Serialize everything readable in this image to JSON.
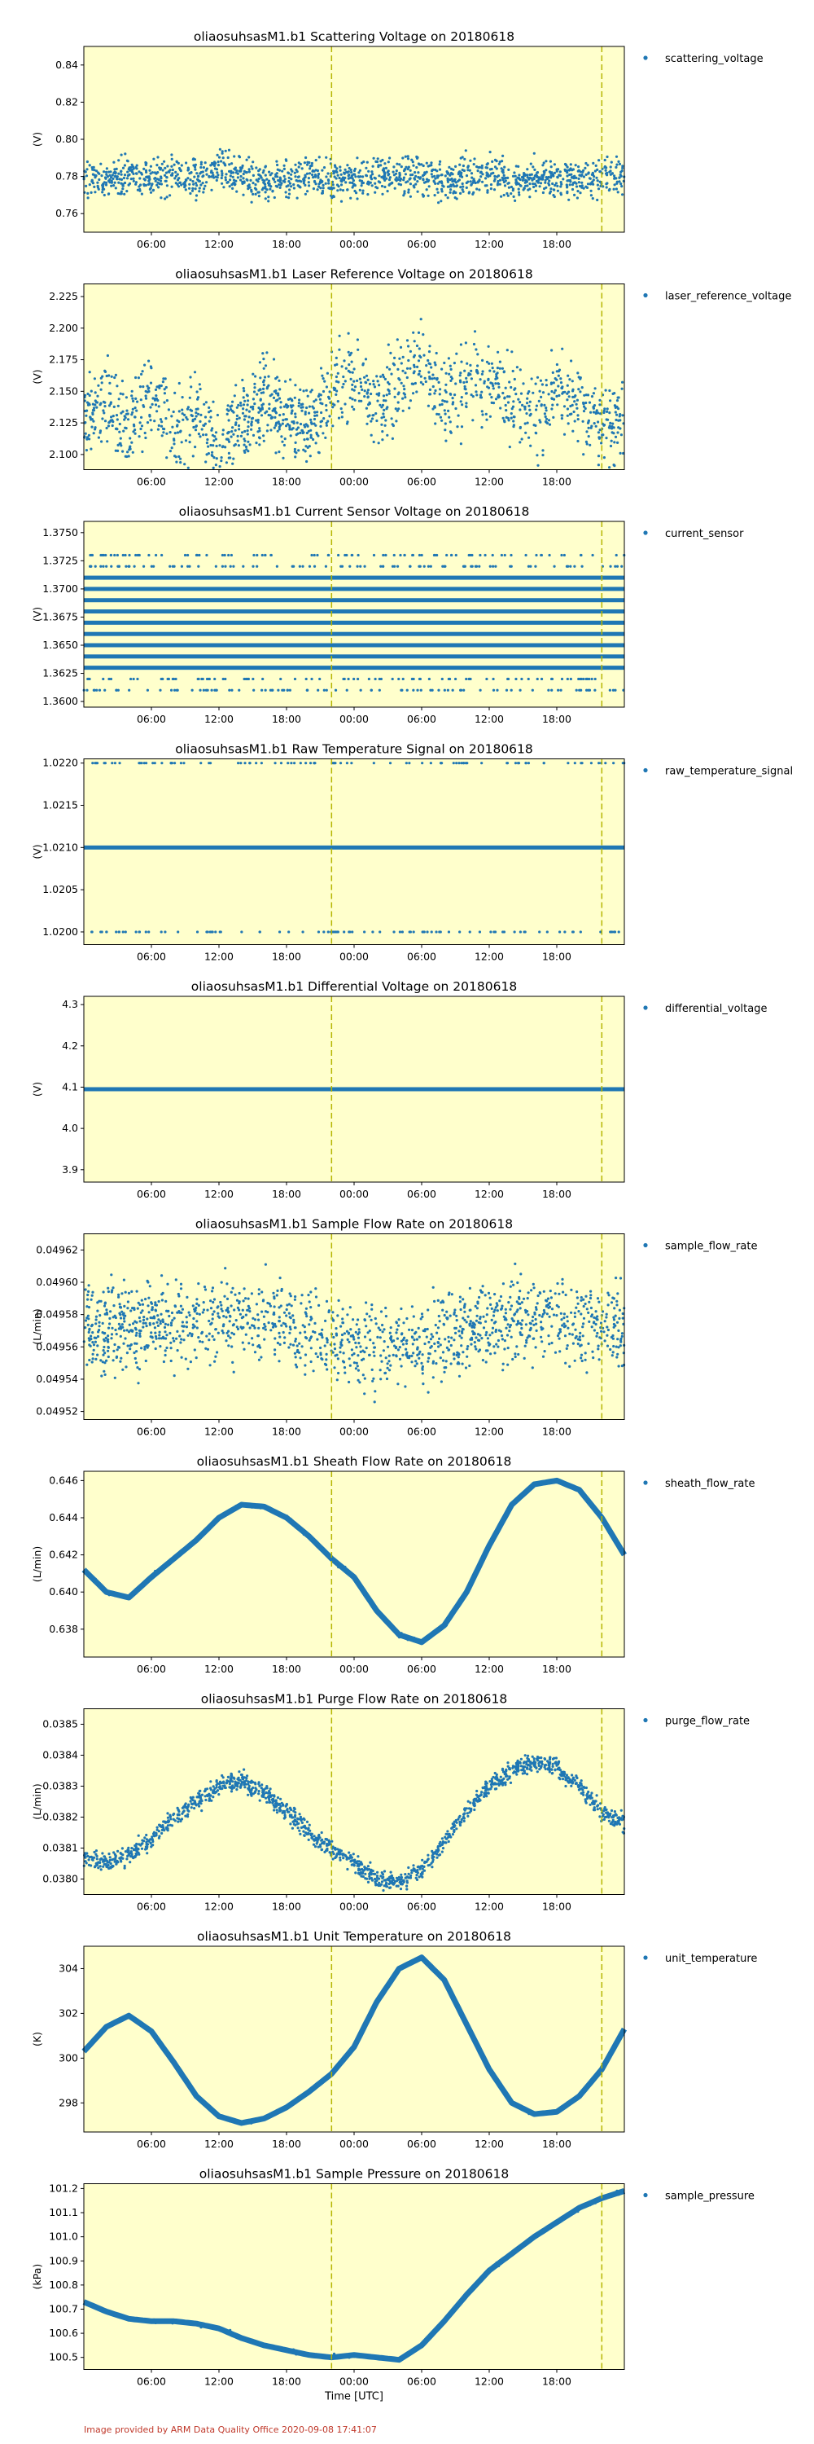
{
  "xaxis": {
    "ticks": [
      "06:00",
      "12:00",
      "18:00",
      "00:00",
      "06:00",
      "12:00",
      "18:00"
    ],
    "tick_hours": [
      6,
      12,
      18,
      24,
      30,
      36,
      42
    ],
    "range_hours": [
      0,
      48
    ],
    "xlabel": "Time [UTC]"
  },
  "vlines_hours": [
    22,
    46
  ],
  "colors": {
    "plot_bg": "#ffffcc",
    "series": "#1f77b4",
    "vline": "#b5b500",
    "footer": "#c0392b"
  },
  "footer": "Image provided by ARM Data Quality Office 2020-09-08 17:41:07",
  "chart_data": [
    {
      "type": "scatter",
      "title": "oliaosuhsasM1.b1 Scattering Voltage on 20180618",
      "ylabel": "(V)",
      "legend": "scattering_voltage",
      "ylim": [
        0.75,
        0.85
      ],
      "yticks": [
        0.76,
        0.78,
        0.8,
        0.82,
        0.84
      ],
      "ytick_labels": [
        "0.76",
        "0.78",
        "0.80",
        "0.82",
        "0.84"
      ],
      "series": [
        {
          "name": "scattering_voltage",
          "x": [
            0,
            2,
            4,
            6,
            8,
            10,
            12,
            14,
            16,
            18,
            20,
            22,
            24,
            26,
            28,
            30,
            32,
            34,
            36,
            38,
            40,
            42,
            44,
            46,
            48
          ],
          "y": [
            0.78,
            0.778,
            0.781,
            0.779,
            0.782,
            0.778,
            0.785,
            0.78,
            0.776,
            0.779,
            0.781,
            0.778,
            0.777,
            0.782,
            0.779,
            0.781,
            0.777,
            0.78,
            0.783,
            0.776,
            0.779,
            0.78,
            0.778,
            0.781,
            0.779
          ]
        }
      ]
    },
    {
      "type": "scatter",
      "title": "oliaosuhsasM1.b1 Laser Reference Voltage on 20180618",
      "ylabel": "(V)",
      "legend": "laser_reference_voltage",
      "ylim": [
        2.088,
        2.235
      ],
      "yticks": [
        2.1,
        2.125,
        2.15,
        2.175,
        2.2,
        2.225
      ],
      "ytick_labels": [
        "2.100",
        "2.125",
        "2.150",
        "2.175",
        "2.200",
        "2.225"
      ],
      "series": [
        {
          "name": "laser_reference_voltage",
          "x": [
            0,
            2,
            4,
            6,
            8,
            10,
            12,
            14,
            16,
            18,
            20,
            22,
            24,
            26,
            28,
            30,
            32,
            34,
            36,
            38,
            40,
            42,
            44,
            46,
            48
          ],
          "y": [
            2.13,
            2.14,
            2.12,
            2.15,
            2.11,
            2.135,
            2.105,
            2.125,
            2.145,
            2.13,
            2.12,
            2.15,
            2.16,
            2.14,
            2.155,
            2.17,
            2.145,
            2.15,
            2.16,
            2.14,
            2.13,
            2.15,
            2.14,
            2.12,
            2.135
          ]
        }
      ]
    },
    {
      "type": "scatter",
      "title": "oliaosuhsasM1.b1 Current Sensor Voltage on 20180618",
      "ylabel": "(V)",
      "legend": "current_sensor",
      "ylim": [
        1.3595,
        1.376
      ],
      "yticks": [
        1.36,
        1.3625,
        1.365,
        1.3675,
        1.37,
        1.3725,
        1.375
      ],
      "ytick_labels": [
        "1.3600",
        "1.3625",
        "1.3650",
        "1.3675",
        "1.3700",
        "1.3725",
        "1.3750"
      ],
      "levels": [
        1.363,
        1.364,
        1.365,
        1.366,
        1.367,
        1.368,
        1.369,
        1.37,
        1.371
      ],
      "sparse_levels": [
        1.361,
        1.362,
        1.372,
        1.373
      ]
    },
    {
      "type": "scatter",
      "title": "oliaosuhsasM1.b1 Raw Temperature Signal on 20180618",
      "ylabel": "(V)",
      "legend": "raw_temperature_signal",
      "ylim": [
        1.01985,
        1.02205
      ],
      "yticks": [
        1.02,
        1.0205,
        1.021,
        1.0215,
        1.022
      ],
      "ytick_labels": [
        "1.0200",
        "1.0205",
        "1.0210",
        "1.0215",
        "1.0220"
      ],
      "levels": [
        1.021
      ],
      "sparse_levels": [
        1.02,
        1.022
      ]
    },
    {
      "type": "scatter",
      "title": "oliaosuhsasM1.b1 Differential Voltage on 20180618",
      "ylabel": "(V)",
      "legend": "differential_voltage",
      "ylim": [
        3.87,
        4.32
      ],
      "yticks": [
        3.9,
        4.0,
        4.1,
        4.2,
        4.3
      ],
      "ytick_labels": [
        "3.9",
        "4.0",
        "4.1",
        "4.2",
        "4.3"
      ],
      "levels": [
        4.095
      ]
    },
    {
      "type": "scatter",
      "title": "oliaosuhsasM1.b1 Sample Flow Rate on 20180618",
      "ylabel": "(L/min)",
      "legend": "sample_flow_rate",
      "ylim": [
        0.049515,
        0.04963
      ],
      "yticks": [
        0.04952,
        0.04954,
        0.04956,
        0.04958,
        0.0496,
        0.04962
      ],
      "ytick_labels": [
        "0.04952",
        "0.04954",
        "0.04956",
        "0.04958",
        "0.04960",
        "0.04962"
      ],
      "series": [
        {
          "name": "sample_flow_rate",
          "x": [
            0,
            4,
            8,
            12,
            16,
            20,
            24,
            28,
            32,
            36,
            40,
            44,
            48
          ],
          "y": [
            0.049568,
            0.049572,
            0.049575,
            0.049578,
            0.049576,
            0.04957,
            0.049562,
            0.04956,
            0.049565,
            0.049575,
            0.049578,
            0.049574,
            0.04957
          ]
        }
      ]
    },
    {
      "type": "line",
      "title": "oliaosuhsasM1.b1 Sheath Flow Rate on 20180618",
      "ylabel": "(L/min)",
      "legend": "sheath_flow_rate",
      "ylim": [
        0.6365,
        0.6465
      ],
      "yticks": [
        0.638,
        0.64,
        0.642,
        0.644,
        0.646
      ],
      "ytick_labels": [
        "0.638",
        "0.640",
        "0.642",
        "0.644",
        "0.646"
      ],
      "series": [
        {
          "name": "sheath_flow_rate",
          "x": [
            0,
            2,
            4,
            6,
            8,
            10,
            12,
            14,
            16,
            18,
            20,
            22,
            24,
            26,
            28,
            30,
            32,
            34,
            36,
            38,
            40,
            42,
            44,
            46,
            48
          ],
          "y": [
            0.6412,
            0.64,
            0.6397,
            0.6408,
            0.6418,
            0.6428,
            0.644,
            0.6447,
            0.6446,
            0.644,
            0.643,
            0.6418,
            0.6408,
            0.639,
            0.6377,
            0.6373,
            0.6382,
            0.64,
            0.6425,
            0.6447,
            0.6458,
            0.646,
            0.6455,
            0.644,
            0.642
          ]
        }
      ]
    },
    {
      "type": "scatter",
      "title": "oliaosuhsasM1.b1 Purge Flow Rate on 20180618",
      "ylabel": "(L/min)",
      "legend": "purge_flow_rate",
      "ylim": [
        0.03795,
        0.03855
      ],
      "yticks": [
        0.038,
        0.0381,
        0.0382,
        0.0383,
        0.0384,
        0.0385
      ],
      "ytick_labels": [
        "0.0380",
        "0.0381",
        "0.0382",
        "0.0383",
        "0.0384",
        "0.0385"
      ],
      "series": [
        {
          "name": "purge_flow_rate",
          "x": [
            0,
            2,
            4,
            6,
            8,
            10,
            12,
            14,
            16,
            18,
            20,
            22,
            24,
            26,
            28,
            30,
            32,
            34,
            36,
            38,
            40,
            42,
            44,
            46,
            48
          ],
          "y": [
            0.03807,
            0.03805,
            0.03808,
            0.03813,
            0.0382,
            0.03825,
            0.0383,
            0.03832,
            0.03828,
            0.03822,
            0.03815,
            0.0381,
            0.03805,
            0.038,
            0.03799,
            0.03803,
            0.03812,
            0.03822,
            0.0383,
            0.03835,
            0.03838,
            0.03836,
            0.0383,
            0.03822,
            0.03818
          ]
        }
      ]
    },
    {
      "type": "line",
      "title": "oliaosuhsasM1.b1 Unit Temperature on 20180618",
      "ylabel": "(K)",
      "legend": "unit_temperature",
      "ylim": [
        296.7,
        305.0
      ],
      "yticks": [
        298,
        300,
        302,
        304
      ],
      "ytick_labels": [
        "298",
        "300",
        "302",
        "304"
      ],
      "series": [
        {
          "name": "unit_temperature",
          "x": [
            0,
            2,
            4,
            6,
            8,
            10,
            12,
            14,
            16,
            18,
            20,
            22,
            24,
            26,
            28,
            30,
            32,
            34,
            36,
            38,
            40,
            42,
            44,
            46,
            48
          ],
          "y": [
            300.3,
            301.4,
            301.9,
            301.2,
            299.8,
            298.3,
            297.4,
            297.1,
            297.3,
            297.8,
            298.5,
            299.3,
            300.5,
            302.5,
            304.0,
            304.5,
            303.5,
            301.5,
            299.5,
            298.0,
            297.5,
            297.6,
            298.3,
            299.5,
            301.3
          ]
        }
      ]
    },
    {
      "type": "line",
      "title": "oliaosuhsasM1.b1 Sample Pressure on 20180618",
      "ylabel": "(kPa)",
      "legend": "sample_pressure",
      "ylim": [
        100.45,
        101.22
      ],
      "yticks": [
        100.5,
        100.6,
        100.7,
        100.8,
        100.9,
        101.0,
        101.1,
        101.2
      ],
      "ytick_labels": [
        "100.5",
        "100.6",
        "100.7",
        "100.8",
        "100.9",
        "101.0",
        "101.1",
        "101.2"
      ],
      "series": [
        {
          "name": "sample_pressure",
          "x": [
            0,
            2,
            4,
            6,
            8,
            10,
            12,
            14,
            16,
            18,
            20,
            22,
            24,
            26,
            28,
            30,
            32,
            34,
            36,
            38,
            40,
            42,
            44,
            46,
            48
          ],
          "y": [
            100.73,
            100.69,
            100.66,
            100.65,
            100.65,
            100.64,
            100.62,
            100.58,
            100.55,
            100.53,
            100.51,
            100.5,
            100.51,
            100.5,
            100.49,
            100.55,
            100.65,
            100.76,
            100.86,
            100.93,
            101.0,
            101.06,
            101.12,
            101.16,
            101.19
          ]
        }
      ]
    }
  ]
}
